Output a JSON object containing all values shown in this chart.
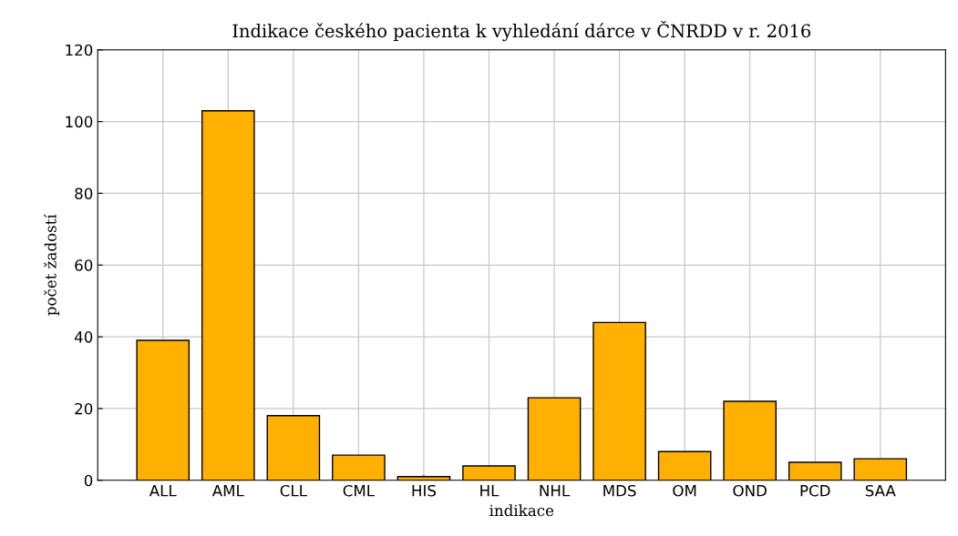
{
  "chart_data": {
    "type": "bar",
    "title": "Indikace českého pacienta k vyhledání dárce v ČNRDD v r. 2016",
    "xlabel": "indikace",
    "ylabel": "počet žadostí",
    "categories": [
      "ALL",
      "AML",
      "CLL",
      "CML",
      "HIS",
      "HL",
      "NHL",
      "MDS",
      "OM",
      "OND",
      "PCD",
      "SAA"
    ],
    "values": [
      39,
      103,
      18,
      7,
      1,
      4,
      23,
      44,
      8,
      22,
      5,
      6
    ],
    "color": "#ffb000",
    "ylim": [
      0,
      120
    ],
    "yticks": [
      0,
      20,
      40,
      60,
      80,
      100,
      120
    ],
    "grid": true
  }
}
